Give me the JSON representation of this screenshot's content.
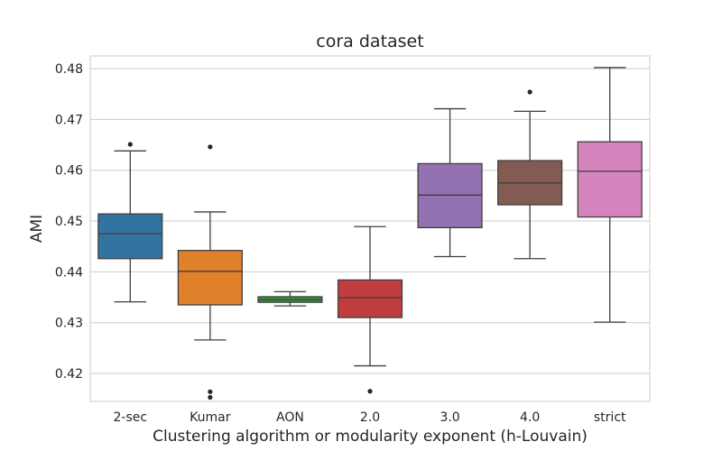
{
  "chart_data": {
    "type": "box",
    "title": "cora dataset",
    "xlabel": "Clustering algorithm or modularity exponent (h-Louvain)",
    "ylabel": "AMI",
    "ylim": [
      0.4145,
      0.4825
    ],
    "yticks": [
      0.42,
      0.43,
      0.44,
      0.45,
      0.46,
      0.47,
      0.48
    ],
    "ytick_labels": [
      "0.42",
      "0.43",
      "0.44",
      "0.45",
      "0.46",
      "0.47",
      "0.48"
    ],
    "grid": true,
    "categories": [
      "2-sec",
      "Kumar",
      "AON",
      "2.0",
      "3.0",
      "4.0",
      "strict"
    ],
    "boxes": [
      {
        "label": "2-sec",
        "color": "#3274a1",
        "whisker_low": 0.4341,
        "q1": 0.4426,
        "median": 0.4475,
        "q3": 0.4514,
        "whisker_high": 0.4638,
        "outliers": [
          0.4651
        ]
      },
      {
        "label": "Kumar",
        "color": "#e1812c",
        "whisker_low": 0.4266,
        "q1": 0.4335,
        "median": 0.4401,
        "q3": 0.4442,
        "whisker_high": 0.4518,
        "outliers": [
          0.4646,
          0.4164,
          0.4153
        ]
      },
      {
        "label": "AON",
        "color": "#3a923a",
        "whisker_low": 0.4333,
        "q1": 0.434,
        "median": 0.4345,
        "q3": 0.4351,
        "whisker_high": 0.4361,
        "outliers": []
      },
      {
        "label": "2.0",
        "color": "#c03d3e",
        "whisker_low": 0.4215,
        "q1": 0.431,
        "median": 0.4349,
        "q3": 0.4384,
        "whisker_high": 0.4489,
        "outliers": [
          0.4165
        ]
      },
      {
        "label": "3.0",
        "color": "#9372b2",
        "whisker_low": 0.443,
        "q1": 0.4487,
        "median": 0.4551,
        "q3": 0.4613,
        "whisker_high": 0.4721,
        "outliers": []
      },
      {
        "label": "4.0",
        "color": "#845b53",
        "whisker_low": 0.4426,
        "q1": 0.4532,
        "median": 0.4575,
        "q3": 0.4619,
        "whisker_high": 0.4716,
        "outliers": [
          0.4754
        ]
      },
      {
        "label": "strict",
        "color": "#d684bd",
        "whisker_low": 0.4301,
        "q1": 0.4508,
        "median": 0.4598,
        "q3": 0.4656,
        "whisker_high": 0.4802,
        "outliers": []
      }
    ]
  }
}
